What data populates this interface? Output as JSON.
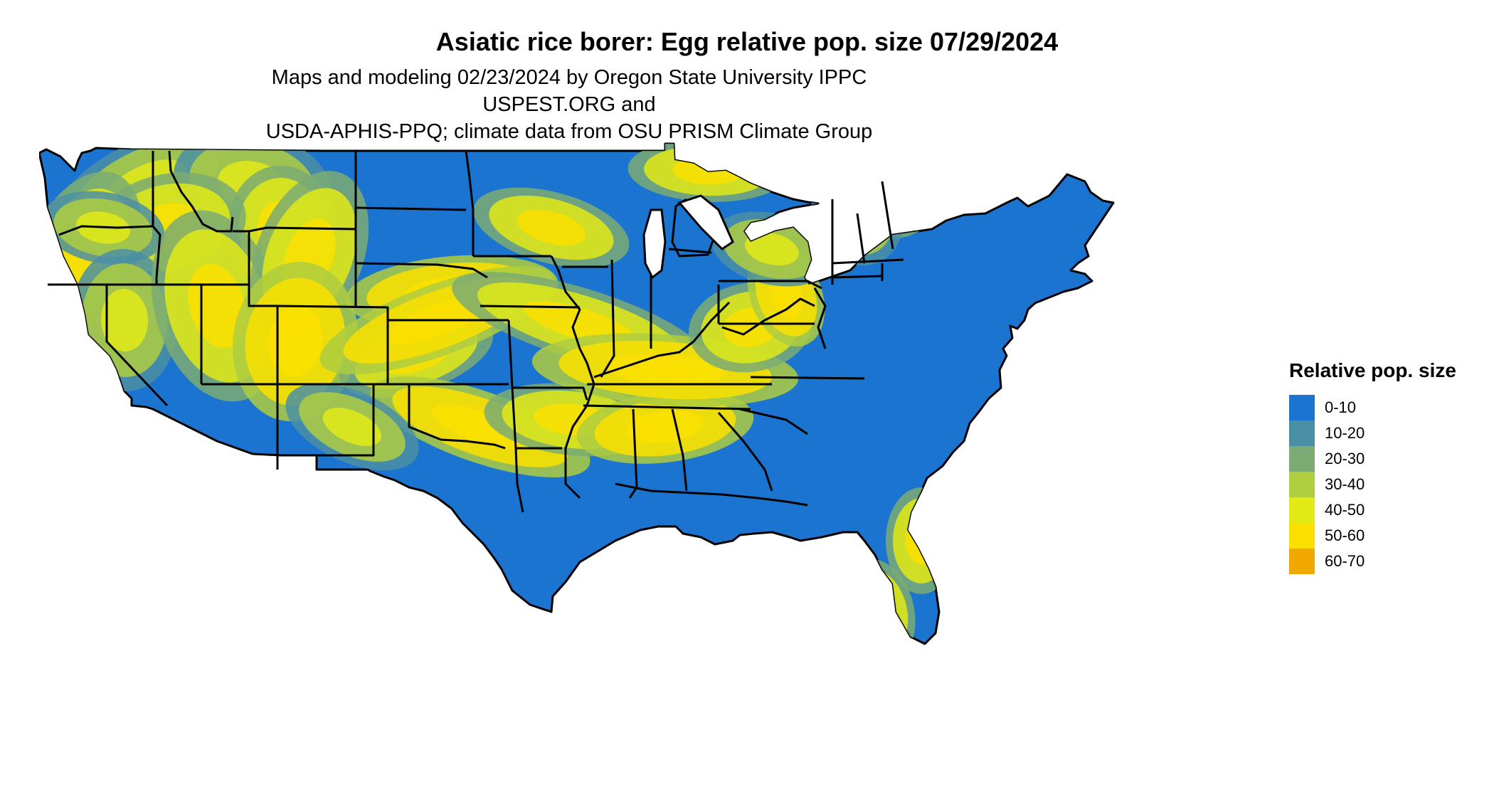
{
  "map": {
    "title": "Asiatic rice borer: Egg relative pop. size 07/29/2024",
    "subtitle_lines": [
      "Maps and modeling 02/23/2024 by Oregon State University IPPC USPEST.ORG and",
      "USDA-APHIS-PPQ; climate data from OSU PRISM Climate Group"
    ],
    "base_color": "#1b74d0",
    "legend": {
      "title": "Relative pop. size",
      "items": [
        {
          "label": "0-10",
          "color": "#1b74d0"
        },
        {
          "label": "10-20",
          "color": "#4b8fa4"
        },
        {
          "label": "20-30",
          "color": "#7bab73"
        },
        {
          "label": "30-40",
          "color": "#aecd3f"
        },
        {
          "label": "40-50",
          "color": "#e2ea16"
        },
        {
          "label": "50-60",
          "color": "#fae000"
        },
        {
          "label": "60-70",
          "color": "#eea800"
        }
      ]
    }
  }
}
